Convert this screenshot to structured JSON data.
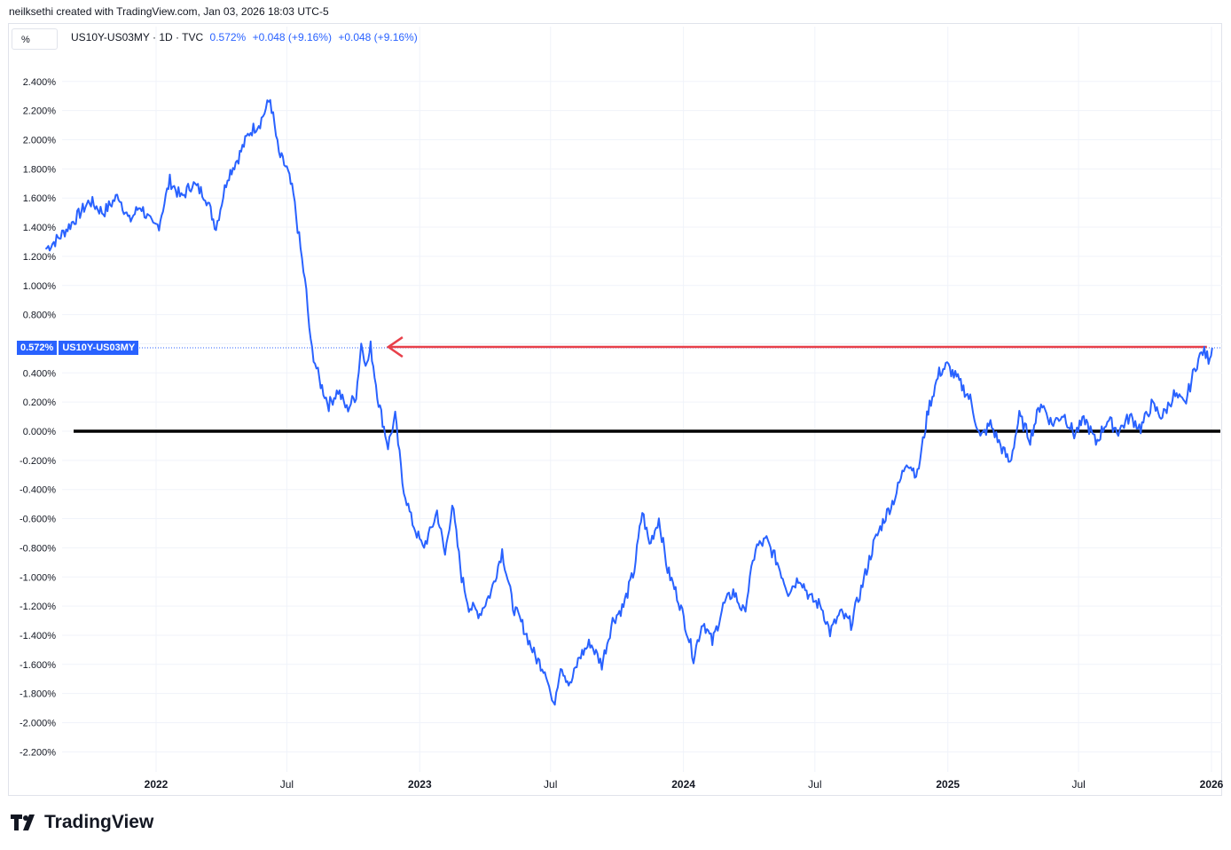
{
  "header": {
    "credit": "neilksethi created with TradingView.com, Jan 03, 2026 18:03 UTC-5"
  },
  "toolbar": {
    "unit": "%"
  },
  "legend": {
    "symbol": "US10Y-US03MY · 1D · TVC",
    "last": "0.572%",
    "change1": "+0.048 (+9.16%)",
    "change2": "+0.048 (+9.16%)"
  },
  "price_tag": {
    "value": "0.572%",
    "name": "US10Y-US03MY"
  },
  "branding": {
    "name": "TradingView"
  },
  "colors": {
    "series": "#2962ff",
    "arrow": "#e8404a",
    "zero_line": "#000000",
    "grid": "#f0f3fa"
  },
  "chart_data": {
    "type": "line",
    "title": "",
    "xlabel": "",
    "ylabel": "",
    "ylim": [
      -2.3,
      2.5
    ],
    "y_ticks": [
      "2.400%",
      "2.200%",
      "2.000%",
      "1.800%",
      "1.600%",
      "1.400%",
      "1.200%",
      "1.000%",
      "0.800%",
      "0.600%",
      "0.400%",
      "0.200%",
      "0.000%",
      "-0.200%",
      "-0.400%",
      "-0.600%",
      "-0.800%",
      "-1.000%",
      "-1.200%",
      "-1.400%",
      "-1.600%",
      "-1.800%",
      "-2.000%",
      "-2.200%"
    ],
    "x_ticks": [
      {
        "label": "2022",
        "date": "2022-01-01",
        "major": true
      },
      {
        "label": "Jul",
        "date": "2022-07-01",
        "major": false
      },
      {
        "label": "2023",
        "date": "2023-01-01",
        "major": true
      },
      {
        "label": "Jul",
        "date": "2023-07-01",
        "major": false
      },
      {
        "label": "2024",
        "date": "2024-01-01",
        "major": true
      },
      {
        "label": "Jul",
        "date": "2024-07-01",
        "major": false
      },
      {
        "label": "2025",
        "date": "2025-01-01",
        "major": true
      },
      {
        "label": "Jul",
        "date": "2025-07-01",
        "major": false
      },
      {
        "label": "2026",
        "date": "2026-01-01",
        "major": true
      }
    ],
    "xlim": [
      "2021-08-01",
      "2026-01-15"
    ],
    "series": [
      {
        "values": [
          [
            "2021-08-01",
            1.25
          ],
          [
            "2021-08-20",
            1.33
          ],
          [
            "2021-09-10",
            1.45
          ],
          [
            "2021-10-01",
            1.58
          ],
          [
            "2021-10-20",
            1.5
          ],
          [
            "2021-11-10",
            1.62
          ],
          [
            "2021-11-25",
            1.44
          ],
          [
            "2021-12-10",
            1.55
          ],
          [
            "2021-12-28",
            1.4
          ],
          [
            "2022-01-05",
            1.42
          ],
          [
            "2022-01-20",
            1.72
          ],
          [
            "2022-02-05",
            1.6
          ],
          [
            "2022-02-20",
            1.7
          ],
          [
            "2022-03-10",
            1.62
          ],
          [
            "2022-03-25",
            1.4
          ],
          [
            "2022-04-10",
            1.75
          ],
          [
            "2022-04-25",
            1.88
          ],
          [
            "2022-05-10",
            2.05
          ],
          [
            "2022-05-25",
            2.12
          ],
          [
            "2022-06-08",
            2.28
          ],
          [
            "2022-06-20",
            1.9
          ],
          [
            "2022-07-01",
            1.8
          ],
          [
            "2022-07-10",
            1.62
          ],
          [
            "2022-07-20",
            1.25
          ],
          [
            "2022-07-28",
            0.95
          ],
          [
            "2022-08-03",
            0.6
          ],
          [
            "2022-08-15",
            0.35
          ],
          [
            "2022-08-28",
            0.18
          ],
          [
            "2022-09-10",
            0.28
          ],
          [
            "2022-09-22",
            0.15
          ],
          [
            "2022-10-05",
            0.25
          ],
          [
            "2022-10-12",
            0.6
          ],
          [
            "2022-10-20",
            0.45
          ],
          [
            "2022-10-25",
            0.58
          ],
          [
            "2022-11-05",
            0.2
          ],
          [
            "2022-11-18",
            -0.1
          ],
          [
            "2022-11-28",
            0.1
          ],
          [
            "2022-12-08",
            -0.35
          ],
          [
            "2022-12-20",
            -0.6
          ],
          [
            "2023-01-05",
            -0.8
          ],
          [
            "2023-01-15",
            -0.7
          ],
          [
            "2023-01-25",
            -0.55
          ],
          [
            "2023-02-05",
            -0.85
          ],
          [
            "2023-02-15",
            -0.5
          ],
          [
            "2023-02-28",
            -1.0
          ],
          [
            "2023-03-10",
            -1.2
          ],
          [
            "2023-03-25",
            -1.25
          ],
          [
            "2023-04-10",
            -1.1
          ],
          [
            "2023-04-25",
            -0.82
          ],
          [
            "2023-05-10",
            -1.2
          ],
          [
            "2023-05-25",
            -1.35
          ],
          [
            "2023-06-10",
            -1.55
          ],
          [
            "2023-06-25",
            -1.65
          ],
          [
            "2023-07-05",
            -1.9
          ],
          [
            "2023-07-15",
            -1.6
          ],
          [
            "2023-07-28",
            -1.75
          ],
          [
            "2023-08-10",
            -1.55
          ],
          [
            "2023-08-25",
            -1.45
          ],
          [
            "2023-09-10",
            -1.6
          ],
          [
            "2023-09-25",
            -1.3
          ],
          [
            "2023-10-10",
            -1.2
          ],
          [
            "2023-10-25",
            -0.95
          ],
          [
            "2023-11-05",
            -0.55
          ],
          [
            "2023-11-15",
            -0.78
          ],
          [
            "2023-11-28",
            -0.6
          ],
          [
            "2023-12-10",
            -0.95
          ],
          [
            "2023-12-25",
            -1.15
          ],
          [
            "2024-01-05",
            -1.35
          ],
          [
            "2024-01-15",
            -1.55
          ],
          [
            "2024-01-28",
            -1.3
          ],
          [
            "2024-02-10",
            -1.45
          ],
          [
            "2024-02-25",
            -1.2
          ],
          [
            "2024-03-10",
            -1.1
          ],
          [
            "2024-03-25",
            -1.25
          ],
          [
            "2024-04-10",
            -0.8
          ],
          [
            "2024-04-25",
            -0.75
          ],
          [
            "2024-05-10",
            -0.9
          ],
          [
            "2024-05-25",
            -1.1
          ],
          [
            "2024-06-10",
            -1.0
          ],
          [
            "2024-06-25",
            -1.15
          ],
          [
            "2024-07-10",
            -1.2
          ],
          [
            "2024-07-22",
            -1.38
          ],
          [
            "2024-08-05",
            -1.25
          ],
          [
            "2024-08-20",
            -1.32
          ],
          [
            "2024-09-05",
            -1.05
          ],
          [
            "2024-09-20",
            -0.78
          ],
          [
            "2024-10-05",
            -0.6
          ],
          [
            "2024-10-20",
            -0.45
          ],
          [
            "2024-11-05",
            -0.2
          ],
          [
            "2024-11-20",
            -0.3
          ],
          [
            "2024-12-05",
            0.15
          ],
          [
            "2024-12-20",
            0.4
          ],
          [
            "2024-12-31",
            0.45
          ],
          [
            "2025-01-15",
            0.35
          ],
          [
            "2025-02-01",
            0.22
          ],
          [
            "2025-02-15",
            -0.05
          ],
          [
            "2025-03-01",
            0.05
          ],
          [
            "2025-03-15",
            -0.1
          ],
          [
            "2025-03-28",
            -0.22
          ],
          [
            "2025-04-10",
            0.1
          ],
          [
            "2025-04-25",
            -0.05
          ],
          [
            "2025-05-10",
            0.2
          ],
          [
            "2025-05-25",
            0.05
          ],
          [
            "2025-06-10",
            0.12
          ],
          [
            "2025-06-25",
            -0.02
          ],
          [
            "2025-07-10",
            0.08
          ],
          [
            "2025-07-25",
            -0.08
          ],
          [
            "2025-08-10",
            0.08
          ],
          [
            "2025-08-25",
            0.0
          ],
          [
            "2025-09-10",
            0.1
          ],
          [
            "2025-09-25",
            0.02
          ],
          [
            "2025-10-10",
            0.18
          ],
          [
            "2025-10-25",
            0.1
          ],
          [
            "2025-11-10",
            0.25
          ],
          [
            "2025-11-25",
            0.18
          ],
          [
            "2025-12-10",
            0.45
          ],
          [
            "2025-12-20",
            0.55
          ],
          [
            "2025-12-28",
            0.5
          ],
          [
            "2026-01-02",
            0.572
          ]
        ]
      }
    ],
    "annotations": [
      {
        "type": "hline",
        "y": 0.0
      },
      {
        "type": "arrow",
        "y": 0.572,
        "from": "2026-01-02",
        "to": "2022-10-25"
      }
    ],
    "grid": true,
    "legend": "none"
  }
}
